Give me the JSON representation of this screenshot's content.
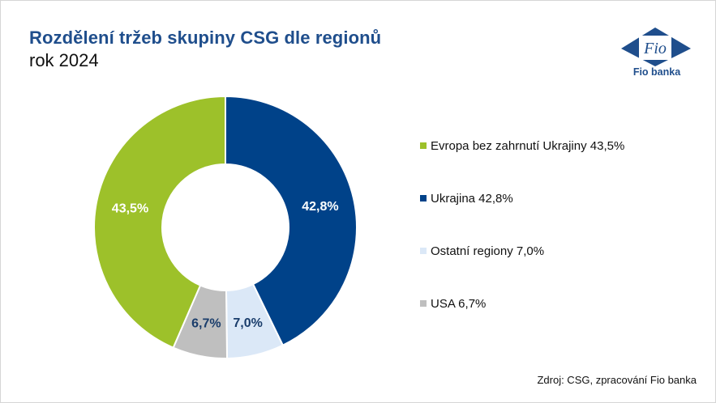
{
  "title": "Rozdělení tržeb skupiny CSG dle regionů",
  "subtitle": "rok 2024",
  "logo": {
    "name": "Fio banka",
    "mark_text": "Fio"
  },
  "source": "Zdroj: CSG, zpracování Fio banka",
  "colors": {
    "title": "#1f4e8c",
    "brand": "#1f4e8c"
  },
  "chart_data": {
    "type": "pie",
    "donut": true,
    "slices": [
      {
        "name": "Ukrajina",
        "value": 42.8,
        "label": "42,8%",
        "legend": "Ukrajina 42,8%",
        "color": "#004289",
        "label_color": "#ffffff"
      },
      {
        "name": "Ostatní regiony",
        "value": 7.0,
        "label": "7,0%",
        "legend": "Ostatní regiony 7,0%",
        "color": "#dbe8f7",
        "label_color": "#1a3d6b"
      },
      {
        "name": "USA",
        "value": 6.7,
        "label": "6,7%",
        "legend": "USA 6,7%",
        "color": "#bfbfbf",
        "label_color": "#1a3d6b"
      },
      {
        "name": "Evropa bez zahrnutí Ukrajiny",
        "value": 43.5,
        "label": "43,5%",
        "legend": "Evropa bez zahrnutí Ukrajiny 43,5%",
        "color": "#9dc12a",
        "label_color": "#ffffff"
      }
    ],
    "legend_order": [
      "Evropa bez zahrnutí Ukrajiny",
      "Ukrajina",
      "Ostatní regiony",
      "USA"
    ],
    "legend_position": "right"
  }
}
